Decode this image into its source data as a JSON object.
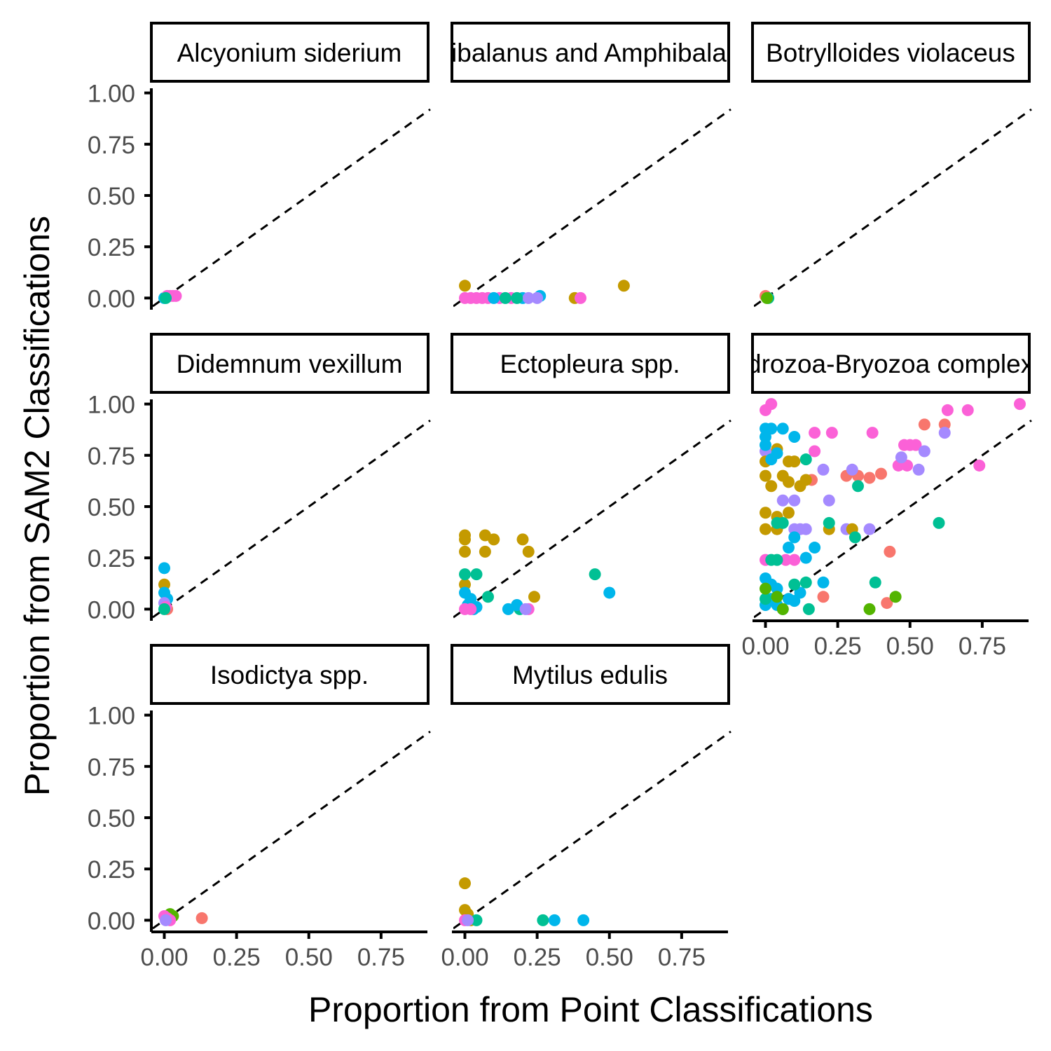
{
  "chart_data": {
    "type": "scatter",
    "xlabel": "Proportion from Point Classifications",
    "ylabel": "Proportion from SAM2 Classifications",
    "xlim": [
      -0.04,
      0.92
    ],
    "ylim": [
      -0.05,
      1.05
    ],
    "x_ticks": [
      "0.00",
      "0.25",
      "0.50",
      "0.75"
    ],
    "y_ticks": [
      "0.00",
      "0.25",
      "0.50",
      "0.75",
      "1.00"
    ],
    "reference_line": "y = x (dashed)",
    "grid": false,
    "legend": "none",
    "colors": [
      "#F8766D",
      "#C49A00",
      "#53B400",
      "#00C094",
      "#00B6EB",
      "#A58AFF",
      "#FB61D7"
    ],
    "panels": [
      {
        "label": "Alcyonium siderium",
        "points": [
          [
            0.0,
            0.0,
            4
          ],
          [
            0.01,
            0.01,
            6
          ],
          [
            0.02,
            0.01,
            6
          ],
          [
            0.03,
            0.01,
            6
          ],
          [
            0.04,
            0.01,
            6
          ],
          [
            0.005,
            0.0,
            3
          ]
        ]
      },
      {
        "label": "Amphibalanus and Amphibalanus",
        "points": [
          [
            0.0,
            0.06,
            1
          ],
          [
            0.38,
            0.0,
            1
          ],
          [
            0.55,
            0.06,
            1
          ],
          [
            0.0,
            0.0,
            6
          ],
          [
            0.02,
            0.0,
            6
          ],
          [
            0.04,
            0.0,
            6
          ],
          [
            0.06,
            0.0,
            6
          ],
          [
            0.08,
            0.0,
            6
          ],
          [
            0.12,
            0.0,
            6
          ],
          [
            0.16,
            0.0,
            6
          ],
          [
            0.4,
            0.0,
            6
          ],
          [
            0.1,
            0.0,
            4
          ],
          [
            0.2,
            0.0,
            4
          ],
          [
            0.26,
            0.01,
            4
          ],
          [
            0.22,
            0.0,
            5
          ],
          [
            0.25,
            0.0,
            5
          ],
          [
            0.14,
            0.0,
            3
          ],
          [
            0.18,
            0.0,
            3
          ]
        ]
      },
      {
        "label": "Botrylloides violaceus",
        "points": [
          [
            0.0,
            0.01,
            0
          ],
          [
            0.01,
            0.0,
            3
          ],
          [
            0.005,
            0.0,
            2
          ]
        ]
      },
      {
        "label": "Didemnum vexillum",
        "points": [
          [
            0.0,
            0.2,
            4
          ],
          [
            0.0,
            0.12,
            1
          ],
          [
            0.0,
            0.08,
            4
          ],
          [
            0.01,
            0.05,
            4
          ],
          [
            0.0,
            0.03,
            5
          ],
          [
            0.01,
            0.0,
            0
          ],
          [
            0.005,
            0.01,
            6
          ],
          [
            0.0,
            0.0,
            3
          ]
        ]
      },
      {
        "label": "Ectopleura spp.",
        "points": [
          [
            0.0,
            0.36,
            1
          ],
          [
            0.0,
            0.34,
            1
          ],
          [
            0.0,
            0.28,
            1
          ],
          [
            0.0,
            0.12,
            1
          ],
          [
            0.07,
            0.36,
            1
          ],
          [
            0.1,
            0.34,
            1
          ],
          [
            0.07,
            0.28,
            1
          ],
          [
            0.2,
            0.34,
            1
          ],
          [
            0.22,
            0.28,
            1
          ],
          [
            0.24,
            0.06,
            1
          ],
          [
            0.0,
            0.17,
            3
          ],
          [
            0.04,
            0.17,
            3
          ],
          [
            0.08,
            0.06,
            3
          ],
          [
            0.45,
            0.17,
            3
          ],
          [
            0.19,
            0.0,
            3
          ],
          [
            0.0,
            0.08,
            4
          ],
          [
            0.02,
            0.05,
            4
          ],
          [
            0.03,
            0.0,
            4
          ],
          [
            0.15,
            0.0,
            4
          ],
          [
            0.18,
            0.02,
            4
          ],
          [
            0.5,
            0.08,
            4
          ],
          [
            0.01,
            0.02,
            4
          ],
          [
            0.04,
            0.01,
            4
          ],
          [
            0.0,
            0.0,
            6
          ],
          [
            0.02,
            0.0,
            6
          ],
          [
            0.22,
            0.0,
            6
          ],
          [
            0.21,
            0.0,
            5
          ]
        ]
      },
      {
        "label": "Hydrozoa-Bryozoa complex",
        "points": [
          [
            0.0,
            0.97,
            6
          ],
          [
            0.02,
            1.0,
            6
          ],
          [
            0.88,
            1.0,
            6
          ],
          [
            0.63,
            0.97,
            6
          ],
          [
            0.7,
            0.97,
            6
          ],
          [
            0.17,
            0.86,
            6
          ],
          [
            0.23,
            0.86,
            6
          ],
          [
            0.37,
            0.86,
            6
          ],
          [
            0.48,
            0.8,
            6
          ],
          [
            0.5,
            0.8,
            6
          ],
          [
            0.52,
            0.8,
            6
          ],
          [
            0.74,
            0.7,
            6
          ],
          [
            0.46,
            0.7,
            6
          ],
          [
            0.49,
            0.7,
            6
          ],
          [
            0.17,
            0.77,
            6
          ],
          [
            0.07,
            0.24,
            6
          ],
          [
            0.1,
            0.24,
            6
          ],
          [
            0.0,
            0.24,
            6
          ],
          [
            0.55,
            0.9,
            0
          ],
          [
            0.62,
            0.9,
            0
          ],
          [
            0.28,
            0.65,
            0
          ],
          [
            0.32,
            0.65,
            0
          ],
          [
            0.36,
            0.64,
            0
          ],
          [
            0.4,
            0.66,
            0
          ],
          [
            0.43,
            0.28,
            0
          ],
          [
            0.42,
            0.03,
            0
          ],
          [
            0.2,
            0.06,
            0
          ],
          [
            0.16,
            0.63,
            0
          ],
          [
            0.62,
            0.86,
            5
          ],
          [
            0.55,
            0.77,
            5
          ],
          [
            0.47,
            0.74,
            5
          ],
          [
            0.53,
            0.68,
            5
          ],
          [
            0.2,
            0.68,
            5
          ],
          [
            0.3,
            0.68,
            5
          ],
          [
            0.22,
            0.53,
            5
          ],
          [
            0.06,
            0.53,
            5
          ],
          [
            0.1,
            0.53,
            5
          ],
          [
            0.36,
            0.39,
            5
          ],
          [
            0.28,
            0.39,
            5
          ],
          [
            0.1,
            0.39,
            5
          ],
          [
            0.12,
            0.39,
            5
          ],
          [
            0.14,
            0.39,
            5
          ],
          [
            0.0,
            0.77,
            5
          ],
          [
            0.0,
            0.72,
            1
          ],
          [
            0.04,
            0.78,
            1
          ],
          [
            0.08,
            0.72,
            1
          ],
          [
            0.1,
            0.72,
            1
          ],
          [
            0.0,
            0.65,
            1
          ],
          [
            0.06,
            0.65,
            1
          ],
          [
            0.08,
            0.62,
            1
          ],
          [
            0.12,
            0.6,
            1
          ],
          [
            0.14,
            0.63,
            1
          ],
          [
            0.0,
            0.47,
            1
          ],
          [
            0.08,
            0.47,
            1
          ],
          [
            0.0,
            0.39,
            1
          ],
          [
            0.04,
            0.39,
            1
          ],
          [
            0.22,
            0.39,
            1
          ],
          [
            0.3,
            0.39,
            1
          ],
          [
            0.02,
            0.6,
            1
          ],
          [
            0.04,
            0.45,
            1
          ],
          [
            0.0,
            0.88,
            4
          ],
          [
            0.02,
            0.88,
            4
          ],
          [
            0.06,
            0.88,
            4
          ],
          [
            0.0,
            0.84,
            4
          ],
          [
            0.0,
            0.8,
            4
          ],
          [
            0.04,
            0.76,
            4
          ],
          [
            0.1,
            0.84,
            4
          ],
          [
            0.02,
            0.73,
            4
          ],
          [
            0.1,
            0.35,
            4
          ],
          [
            0.08,
            0.3,
            4
          ],
          [
            0.17,
            0.3,
            4
          ],
          [
            0.14,
            0.25,
            4
          ],
          [
            0.2,
            0.13,
            4
          ],
          [
            0.0,
            0.15,
            4
          ],
          [
            0.02,
            0.12,
            4
          ],
          [
            0.04,
            0.1,
            4
          ],
          [
            0.08,
            0.05,
            4
          ],
          [
            0.1,
            0.04,
            4
          ],
          [
            0.12,
            0.08,
            4
          ],
          [
            0.0,
            0.02,
            4
          ],
          [
            0.06,
            0.0,
            4
          ],
          [
            0.02,
            0.05,
            4
          ],
          [
            0.04,
            0.02,
            4
          ],
          [
            0.6,
            0.42,
            3
          ],
          [
            0.32,
            0.6,
            3
          ],
          [
            0.31,
            0.35,
            3
          ],
          [
            0.22,
            0.42,
            3
          ],
          [
            0.14,
            0.73,
            3
          ],
          [
            0.04,
            0.42,
            3
          ],
          [
            0.06,
            0.42,
            3
          ],
          [
            0.14,
            0.13,
            3
          ],
          [
            0.38,
            0.13,
            3
          ],
          [
            0.15,
            0.0,
            3
          ],
          [
            0.1,
            0.12,
            3
          ],
          [
            0.02,
            0.24,
            3
          ],
          [
            0.04,
            0.24,
            3
          ],
          [
            0.0,
            0.05,
            3
          ],
          [
            0.36,
            0.0,
            2
          ],
          [
            0.45,
            0.06,
            2
          ],
          [
            0.0,
            0.1,
            2
          ],
          [
            0.04,
            0.06,
            2
          ],
          [
            0.06,
            0.0,
            2
          ]
        ]
      },
      {
        "label": "Isodictya spp.",
        "points": [
          [
            0.13,
            0.01,
            0
          ],
          [
            0.02,
            0.03,
            2
          ],
          [
            0.03,
            0.02,
            2
          ],
          [
            0.0,
            0.02,
            6
          ],
          [
            0.01,
            0.01,
            6
          ],
          [
            0.02,
            0.0,
            6
          ],
          [
            0.005,
            0.0,
            5
          ]
        ]
      },
      {
        "label": "Mytilus edulis",
        "points": [
          [
            0.0,
            0.18,
            1
          ],
          [
            0.0,
            0.05,
            1
          ],
          [
            0.01,
            0.03,
            1
          ],
          [
            0.02,
            0.0,
            1
          ],
          [
            0.04,
            0.0,
            3
          ],
          [
            0.27,
            0.0,
            3
          ],
          [
            0.31,
            0.0,
            4
          ],
          [
            0.41,
            0.0,
            4
          ],
          [
            0.0,
            0.0,
            6
          ],
          [
            0.01,
            0.0,
            5
          ]
        ]
      }
    ]
  }
}
